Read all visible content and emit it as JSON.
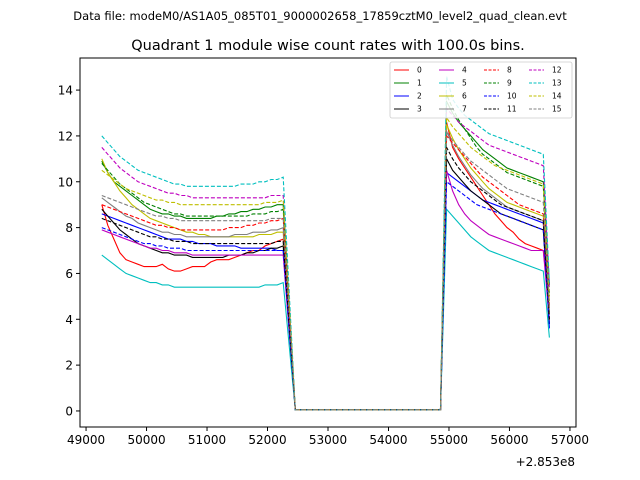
{
  "chart_data": {
    "type": "line",
    "suptitle": "Data file: modeM0/AS1A05_085T01_9000002658_17859cztM0_level2_quad_clean.evt",
    "title": "Quadrant 1 module wise count rates with 100.0s bins.",
    "xlabel": "",
    "ylabel": "",
    "x_offset_label": "+2.853e8",
    "xlim": [
      48900,
      57100
    ],
    "ylim": [
      -0.7,
      15.4
    ],
    "x_ticks": [
      49000,
      50000,
      51000,
      52000,
      53000,
      54000,
      55000,
      56000,
      57000
    ],
    "x_tick_labels": [
      "49000",
      "50000",
      "51000",
      "52000",
      "53000",
      "54000",
      "55000",
      "56000",
      "57000"
    ],
    "y_ticks": [
      0,
      2,
      4,
      6,
      8,
      10,
      12,
      14
    ],
    "y_tick_labels": [
      "0",
      "2",
      "4",
      "6",
      "8",
      "10",
      "12",
      "14"
    ],
    "legend_position": "top-right",
    "segments": [
      {
        "x_start": 49260,
        "x_end": 52260,
        "step": 100
      },
      {
        "x_start": 52460,
        "x_end": 54860,
        "step": 100
      },
      {
        "x_start": 54960,
        "x_end": 56660,
        "step": 100
      }
    ],
    "series": [
      {
        "name": "0",
        "color": "#ff0000",
        "dash": "solid",
        "seg1": [
          9.0,
          8.1,
          7.5,
          6.9,
          6.6,
          6.5,
          6.4,
          6.3,
          6.3,
          6.3,
          6.4,
          6.2,
          6.1,
          6.1,
          6.2,
          6.3,
          6.3,
          6.3,
          6.5,
          6.6,
          6.6,
          6.6,
          6.7,
          6.8,
          6.9,
          7.0,
          7.0,
          7.2,
          7.3,
          7.4,
          7.5
        ],
        "seg3": [
          12.6,
          11.5,
          11.0,
          10.6,
          10.2,
          9.8,
          9.4,
          9.0,
          8.6,
          8.3,
          8.0,
          7.8,
          7.5,
          7.3,
          7.2,
          7.1,
          7.0,
          4.5
        ]
      },
      {
        "name": "1",
        "color": "#008000",
        "dash": "solid",
        "seg1": [
          10.9,
          10.4,
          10.0,
          9.8,
          9.6,
          9.4,
          9.2,
          9.0,
          8.8,
          8.7,
          8.6,
          8.6,
          8.5,
          8.5,
          8.4,
          8.4,
          8.4,
          8.4,
          8.4,
          8.5,
          8.5,
          8.6,
          8.6,
          8.7,
          8.7,
          8.8,
          8.8,
          8.9,
          8.9,
          9.0,
          9.0
        ],
        "seg3": [
          13.5,
          13.0,
          12.6,
          12.3,
          12.0,
          11.7,
          11.4,
          11.2,
          11.0,
          10.8,
          10.6,
          10.5,
          10.4,
          10.3,
          10.2,
          10.1,
          10.0,
          5.5
        ]
      },
      {
        "name": "2",
        "color": "#0000ff",
        "dash": "solid",
        "seg1": [
          8.6,
          8.5,
          8.4,
          8.3,
          8.2,
          8.1,
          8.0,
          7.9,
          7.8,
          7.7,
          7.6,
          7.5,
          7.5,
          7.5,
          7.4,
          7.4,
          7.3,
          7.3,
          7.3,
          7.2,
          7.2,
          7.2,
          7.2,
          7.1,
          7.1,
          7.1,
          7.1,
          7.1,
          7.1,
          7.0,
          7.0
        ],
        "seg3": [
          10.4,
          10.2,
          10.0,
          9.8,
          9.6,
          9.4,
          9.2,
          9.1,
          9.0,
          8.9,
          8.8,
          8.7,
          8.6,
          8.5,
          8.4,
          8.3,
          8.2,
          3.6
        ]
      },
      {
        "name": "3",
        "color": "#000000",
        "dash": "solid",
        "seg1": [
          8.8,
          8.5,
          8.2,
          7.9,
          7.7,
          7.5,
          7.3,
          7.2,
          7.1,
          7.0,
          6.9,
          6.9,
          6.8,
          6.8,
          6.8,
          6.7,
          6.7,
          6.7,
          6.7,
          6.7,
          6.7,
          6.8,
          6.8,
          6.8,
          6.9,
          6.9,
          7.0,
          7.0,
          7.1,
          7.1,
          7.2
        ],
        "seg3": [
          11.0,
          10.5,
          10.2,
          9.9,
          9.6,
          9.4,
          9.2,
          9.0,
          8.8,
          8.6,
          8.5,
          8.4,
          8.3,
          8.2,
          8.1,
          8.0,
          7.9,
          3.8
        ]
      },
      {
        "name": "4",
        "color": "#bf00bf",
        "dash": "solid",
        "seg1": [
          7.9,
          7.8,
          7.7,
          7.6,
          7.5,
          7.4,
          7.3,
          7.2,
          7.1,
          7.1,
          7.0,
          7.0,
          6.9,
          6.9,
          6.9,
          6.8,
          6.8,
          6.8,
          6.8,
          6.8,
          6.8,
          6.8,
          6.8,
          6.8,
          6.8,
          6.8,
          6.8,
          6.8,
          6.8,
          6.8,
          6.8
        ],
        "seg3": [
          10.5,
          9.6,
          9.0,
          8.6,
          8.3,
          8.1,
          7.9,
          7.7,
          7.6,
          7.5,
          7.4,
          7.3,
          7.2,
          7.1,
          7.0,
          7.0,
          7.0,
          4.0
        ]
      },
      {
        "name": "5",
        "color": "#00bfbf",
        "dash": "solid",
        "seg1": [
          6.8,
          6.6,
          6.4,
          6.2,
          6.0,
          5.9,
          5.8,
          5.7,
          5.6,
          5.6,
          5.5,
          5.5,
          5.4,
          5.4,
          5.4,
          5.4,
          5.4,
          5.4,
          5.4,
          5.4,
          5.4,
          5.4,
          5.4,
          5.4,
          5.4,
          5.4,
          5.4,
          5.5,
          5.5,
          5.5,
          5.6
        ],
        "seg3": [
          8.8,
          8.5,
          8.2,
          7.9,
          7.6,
          7.4,
          7.2,
          7.0,
          6.9,
          6.8,
          6.7,
          6.6,
          6.5,
          6.4,
          6.3,
          6.2,
          6.1,
          3.2
        ]
      },
      {
        "name": "6",
        "color": "#bfbf00",
        "dash": "solid",
        "seg1": [
          11.0,
          10.4,
          10.0,
          9.6,
          9.3,
          9.0,
          8.8,
          8.6,
          8.4,
          8.3,
          8.2,
          8.1,
          8.0,
          7.9,
          7.8,
          7.8,
          7.7,
          7.7,
          7.6,
          7.6,
          7.6,
          7.6,
          7.6,
          7.6,
          7.6,
          7.6,
          7.7,
          7.7,
          7.7,
          7.8,
          7.8
        ],
        "seg3": [
          12.5,
          11.9,
          11.4,
          11.0,
          10.6,
          10.3,
          10.0,
          9.7,
          9.5,
          9.3,
          9.1,
          9.0,
          8.9,
          8.8,
          8.7,
          8.6,
          8.5,
          4.3
        ]
      },
      {
        "name": "7",
        "color": "#808080",
        "dash": "solid",
        "seg1": [
          9.3,
          9.1,
          8.9,
          8.7,
          8.5,
          8.4,
          8.2,
          8.1,
          8.0,
          7.9,
          7.8,
          7.8,
          7.7,
          7.7,
          7.6,
          7.6,
          7.6,
          7.6,
          7.6,
          7.6,
          7.6,
          7.6,
          7.7,
          7.7,
          7.7,
          7.8,
          7.8,
          7.8,
          7.9,
          7.9,
          8.0
        ],
        "seg3": [
          12.2,
          11.6,
          11.1,
          10.7,
          10.3,
          10.0,
          9.7,
          9.5,
          9.3,
          9.1,
          8.9,
          8.8,
          8.7,
          8.6,
          8.5,
          8.4,
          8.3,
          4.2
        ]
      },
      {
        "name": "8",
        "color": "#ff0000",
        "dash": "dashed",
        "seg1": [
          9.0,
          8.9,
          8.8,
          8.7,
          8.6,
          8.5,
          8.4,
          8.3,
          8.2,
          8.1,
          8.1,
          8.0,
          8.0,
          7.9,
          7.9,
          7.9,
          7.9,
          7.9,
          7.9,
          7.9,
          7.9,
          8.0,
          8.0,
          8.0,
          8.1,
          8.1,
          8.2,
          8.2,
          8.3,
          8.3,
          8.4
        ],
        "seg3": [
          12.0,
          11.7,
          11.4,
          11.1,
          10.8,
          10.5,
          10.2,
          10.0,
          9.8,
          9.6,
          9.4,
          9.2,
          9.0,
          8.9,
          8.8,
          8.7,
          8.6,
          4.6
        ]
      },
      {
        "name": "9",
        "color": "#008000",
        "dash": "dashed",
        "seg1": [
          10.8,
          10.5,
          10.2,
          9.9,
          9.7,
          9.5,
          9.3,
          9.1,
          9.0,
          8.9,
          8.8,
          8.7,
          8.6,
          8.6,
          8.5,
          8.5,
          8.5,
          8.5,
          8.5,
          8.5,
          8.5,
          8.5,
          8.5,
          8.5,
          8.5,
          8.6,
          8.6,
          8.6,
          8.7,
          8.7,
          8.8
        ],
        "seg3": [
          13.8,
          13.2,
          12.7,
          12.3,
          11.9,
          11.5,
          11.2,
          11.0,
          10.8,
          10.6,
          10.4,
          10.3,
          10.2,
          10.1,
          10.0,
          9.9,
          9.8,
          5.0
        ]
      },
      {
        "name": "10",
        "color": "#0000ff",
        "dash": "dashed",
        "seg1": [
          8.0,
          7.9,
          7.8,
          7.7,
          7.6,
          7.5,
          7.4,
          7.3,
          7.3,
          7.2,
          7.2,
          7.1,
          7.1,
          7.1,
          7.0,
          7.0,
          7.0,
          7.0,
          7.0,
          7.0,
          7.0,
          7.0,
          7.0,
          7.0,
          7.0,
          7.0,
          7.0,
          7.0,
          7.0,
          7.0,
          7.0
        ],
        "seg3": [
          10.0,
          9.8,
          9.6,
          9.4,
          9.2,
          9.0,
          8.9,
          8.8,
          8.7,
          8.6,
          8.5,
          8.4,
          8.3,
          8.2,
          8.1,
          8.0,
          7.9,
          3.7
        ]
      },
      {
        "name": "11",
        "color": "#000000",
        "dash": "dashed",
        "seg1": [
          8.4,
          8.3,
          8.2,
          8.1,
          8.0,
          7.9,
          7.8,
          7.7,
          7.6,
          7.6,
          7.5,
          7.5,
          7.4,
          7.4,
          7.4,
          7.3,
          7.3,
          7.3,
          7.3,
          7.3,
          7.3,
          7.3,
          7.3,
          7.3,
          7.3,
          7.3,
          7.3,
          7.3,
          7.3,
          7.4,
          7.4
        ],
        "seg3": [
          11.5,
          11.0,
          10.6,
          10.3,
          10.0,
          9.8,
          9.6,
          9.4,
          9.2,
          9.0,
          8.9,
          8.8,
          8.7,
          8.6,
          8.5,
          8.4,
          8.3,
          4.0
        ]
      },
      {
        "name": "12",
        "color": "#bf00bf",
        "dash": "dashed",
        "seg1": [
          11.5,
          11.2,
          10.9,
          10.6,
          10.4,
          10.2,
          10.0,
          9.9,
          9.8,
          9.7,
          9.6,
          9.5,
          9.5,
          9.4,
          9.4,
          9.3,
          9.3,
          9.3,
          9.3,
          9.3,
          9.3,
          9.3,
          9.3,
          9.3,
          9.3,
          9.3,
          9.3,
          9.3,
          9.4,
          9.4,
          9.4
        ],
        "seg3": [
          13.2,
          12.9,
          12.6,
          12.4,
          12.2,
          12.0,
          11.8,
          11.6,
          11.5,
          11.4,
          11.3,
          11.2,
          11.1,
          11.0,
          10.9,
          10.8,
          10.7,
          5.3
        ]
      },
      {
        "name": "13",
        "color": "#00bfbf",
        "dash": "dashed",
        "seg1": [
          12.0,
          11.7,
          11.4,
          11.1,
          10.9,
          10.7,
          10.5,
          10.4,
          10.3,
          10.2,
          10.1,
          10.0,
          9.9,
          9.9,
          9.8,
          9.8,
          9.8,
          9.8,
          9.8,
          9.8,
          9.8,
          9.8,
          9.8,
          9.9,
          9.9,
          9.9,
          10.0,
          10.0,
          10.1,
          10.1,
          10.2
        ],
        "seg3": [
          14.6,
          13.6,
          13.2,
          12.9,
          12.7,
          12.5,
          12.3,
          12.1,
          12.0,
          11.9,
          11.8,
          11.7,
          11.6,
          11.5,
          11.4,
          11.3,
          11.2,
          5.6
        ]
      },
      {
        "name": "14",
        "color": "#bfbf00",
        "dash": "dashed",
        "seg1": [
          10.5,
          10.3,
          10.1,
          9.9,
          9.7,
          9.6,
          9.5,
          9.4,
          9.3,
          9.2,
          9.2,
          9.1,
          9.1,
          9.0,
          9.0,
          9.0,
          9.0,
          9.0,
          9.0,
          9.0,
          9.0,
          9.0,
          9.0,
          9.0,
          9.0,
          9.0,
          9.0,
          9.1,
          9.1,
          9.1,
          9.2
        ],
        "seg3": [
          12.8,
          12.4,
          12.1,
          11.8,
          11.5,
          11.3,
          11.1,
          10.9,
          10.7,
          10.6,
          10.5,
          10.4,
          10.3,
          10.2,
          10.1,
          10.0,
          9.9,
          4.8
        ]
      },
      {
        "name": "15",
        "color": "#808080",
        "dash": "dashed",
        "seg1": [
          9.4,
          9.3,
          9.2,
          9.1,
          9.0,
          8.9,
          8.8,
          8.7,
          8.6,
          8.5,
          8.5,
          8.4,
          8.4,
          8.3,
          8.3,
          8.3,
          8.3,
          8.3,
          8.3,
          8.3,
          8.3,
          8.3,
          8.3,
          8.3,
          8.3,
          8.3,
          8.3,
          8.3,
          8.4,
          8.4,
          8.4
        ],
        "seg3": [
          12.2,
          11.8,
          11.5,
          11.2,
          10.9,
          10.7,
          10.5,
          10.3,
          10.1,
          9.9,
          9.7,
          9.6,
          9.5,
          9.4,
          9.3,
          9.2,
          9.1,
          4.4
        ]
      }
    ]
  }
}
